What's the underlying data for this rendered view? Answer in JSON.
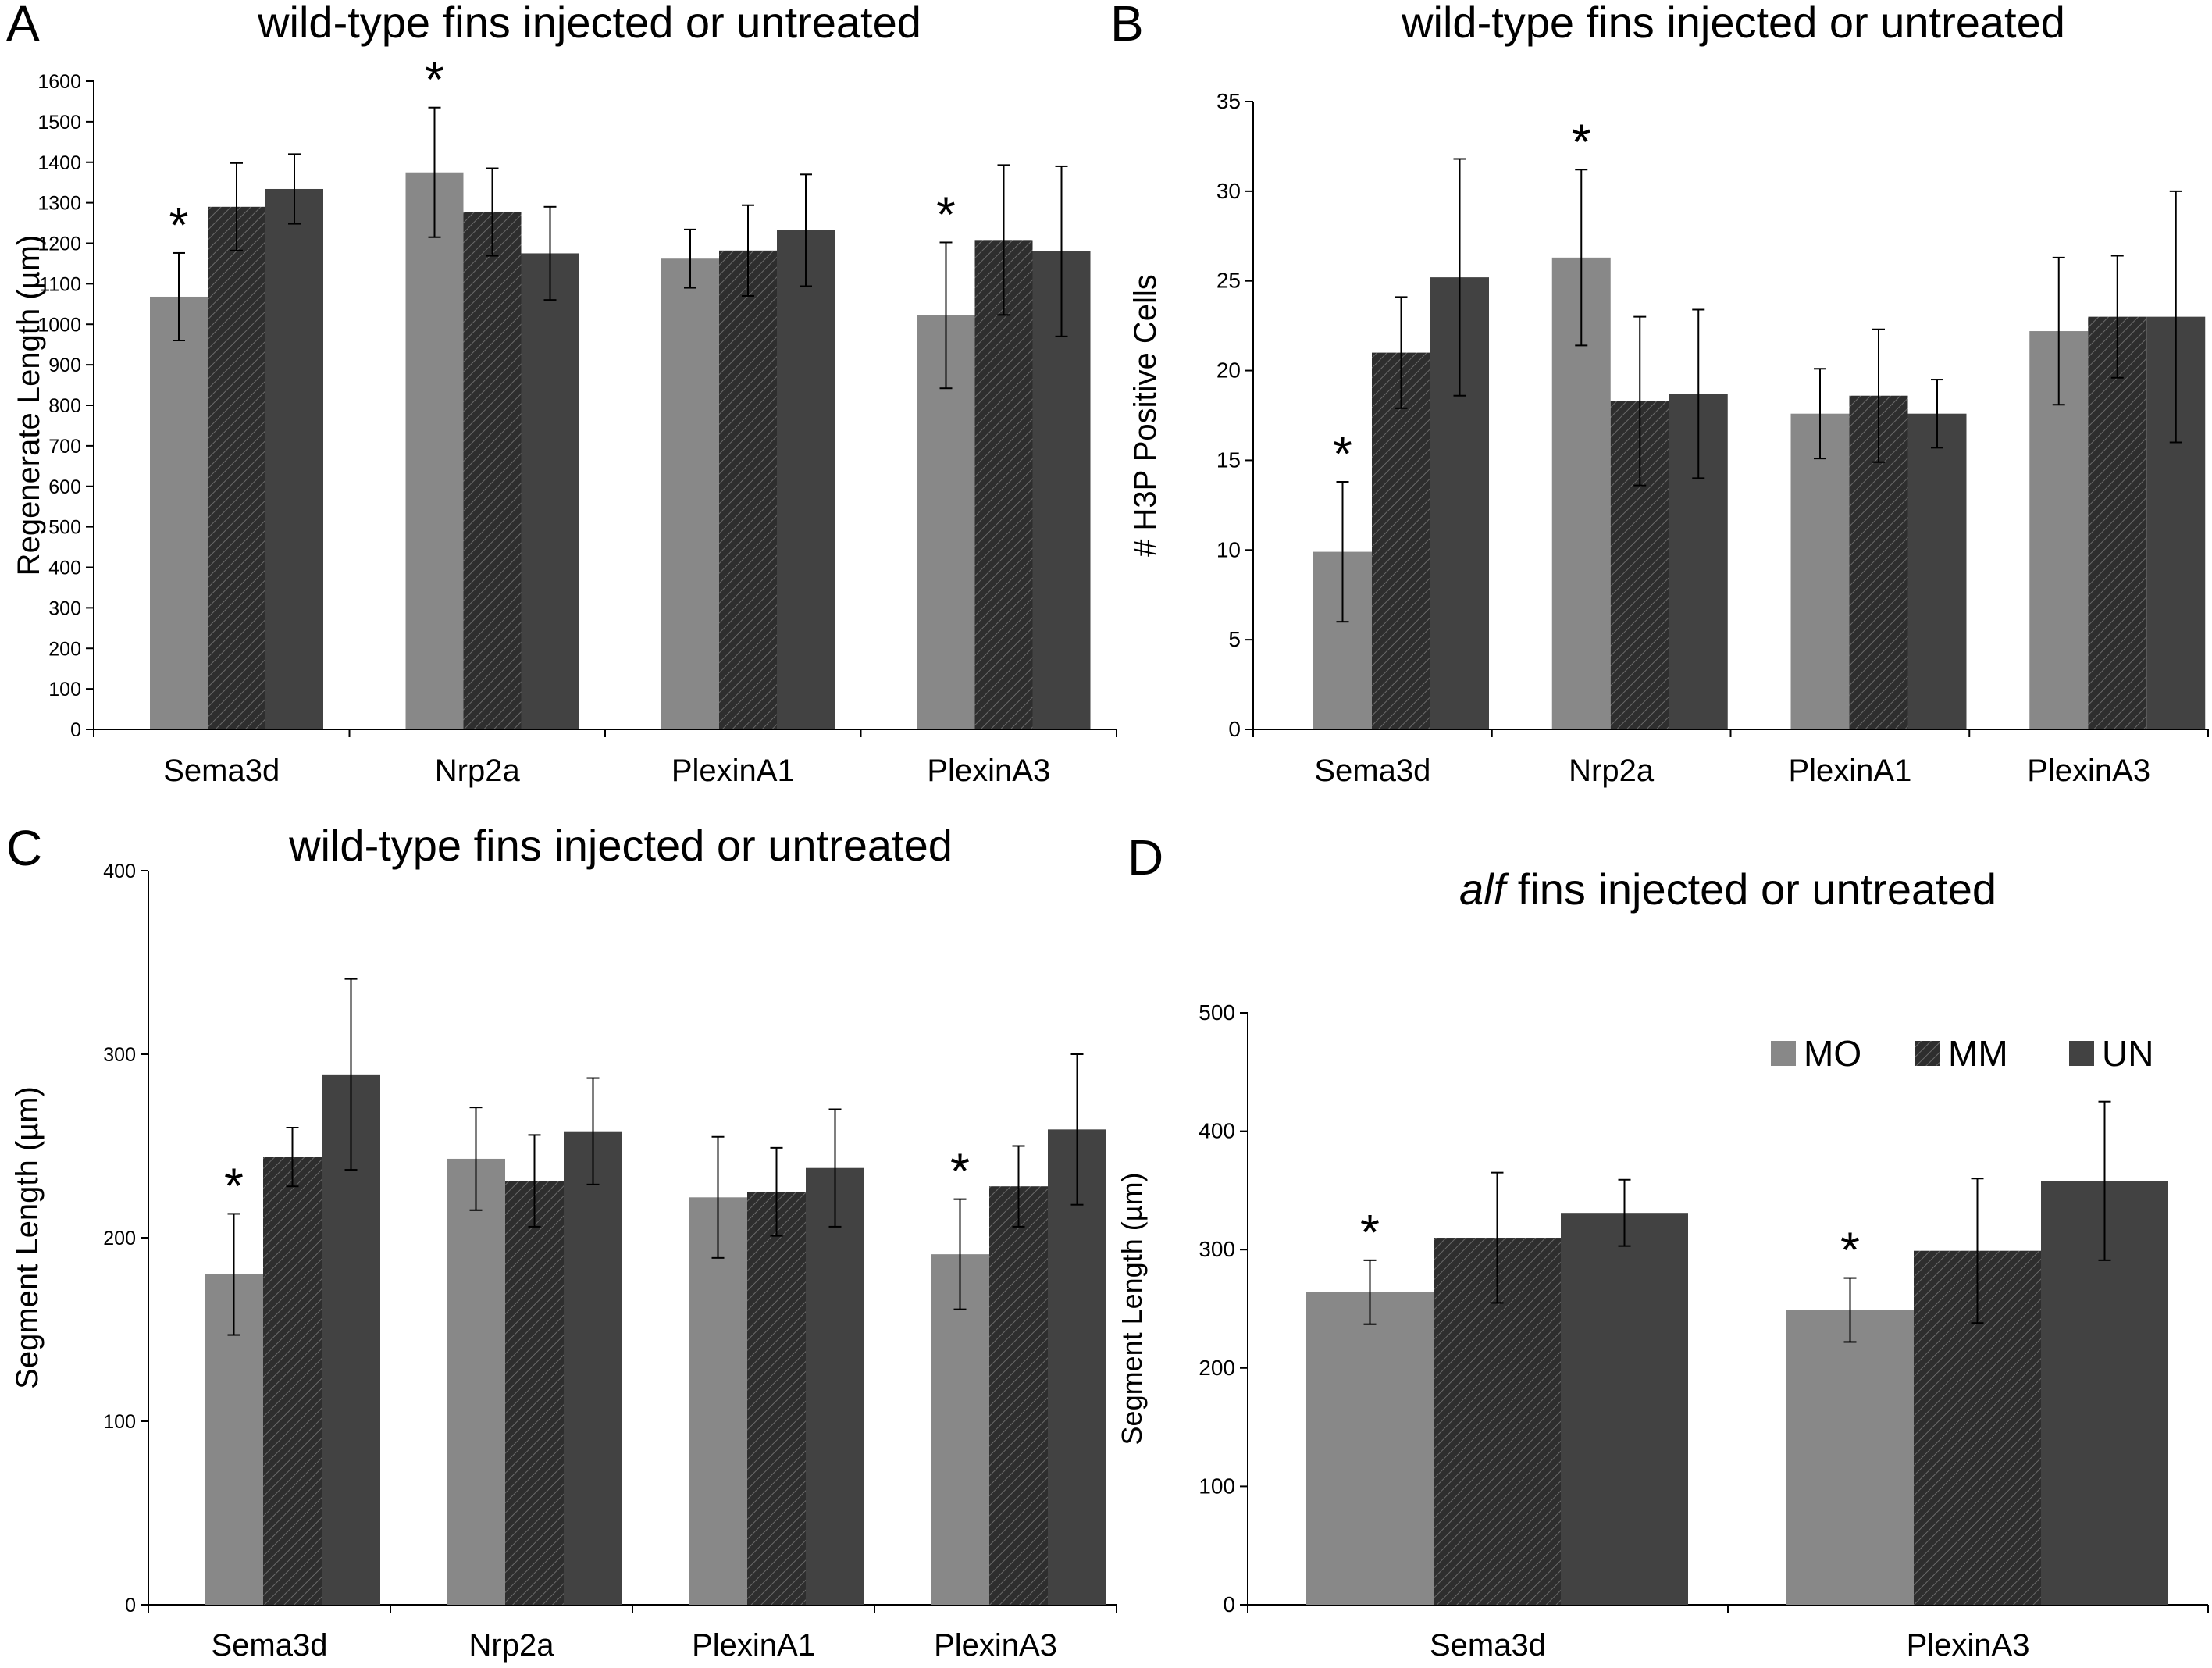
{
  "colors": {
    "MO": "#888888",
    "MM": "#333333",
    "UN": "#424242",
    "axis": "#000000"
  },
  "legend": [
    {
      "key": "MO",
      "label": "MO"
    },
    {
      "key": "MM",
      "label": "MM"
    },
    {
      "key": "UN",
      "label": "UN"
    }
  ],
  "chart_data": [
    {
      "panel": "A",
      "type": "bar",
      "title": "wild-type fins injected or untreated",
      "ylabel": "Regenerate Length (µm)",
      "ylim": [
        0,
        1600
      ],
      "ytick_step": 100,
      "categories": [
        "Sema3d",
        "Nrp2a",
        "PlexinA1",
        "PlexinA3"
      ],
      "series": [
        {
          "key": "MO",
          "values": [
            1068,
            1375,
            1162,
            1022
          ],
          "errors": [
            108,
            160,
            72,
            180
          ]
        },
        {
          "key": "MM",
          "values": [
            1290,
            1277,
            1182,
            1208
          ],
          "errors": [
            108,
            108,
            112,
            185
          ]
        },
        {
          "key": "UN",
          "values": [
            1334,
            1175,
            1232,
            1180
          ],
          "errors": [
            86,
            115,
            138,
            210
          ]
        }
      ],
      "significance": [
        "*",
        "*",
        "",
        "*"
      ]
    },
    {
      "panel": "B",
      "type": "bar",
      "title": "wild-type fins injected or untreated",
      "ylabel": "# H3P Positive Cells",
      "ylim": [
        0,
        35
      ],
      "ytick_step": 5,
      "categories": [
        "Sema3d",
        "Nrp2a",
        "PlexinA1",
        "PlexinA3"
      ],
      "series": [
        {
          "key": "MO",
          "values": [
            9.9,
            26.3,
            17.6,
            22.2
          ],
          "errors": [
            3.9,
            4.9,
            2.5,
            4.1
          ]
        },
        {
          "key": "MM",
          "values": [
            21.0,
            18.3,
            18.6,
            23.0
          ],
          "errors": [
            3.1,
            4.7,
            3.7,
            3.4
          ]
        },
        {
          "key": "UN",
          "values": [
            25.2,
            18.7,
            17.6,
            23.0
          ],
          "errors": [
            6.6,
            4.7,
            1.9,
            7.0
          ]
        }
      ],
      "significance": [
        "*",
        "*",
        "",
        ""
      ]
    },
    {
      "panel": "C",
      "type": "bar",
      "title": "wild-type fins injected or untreated",
      "ylabel": "Segment Length (µm)",
      "ylim": [
        0,
        400
      ],
      "ytick_step": 100,
      "categories": [
        "Sema3d",
        "Nrp2a",
        "PlexinA1",
        "PlexinA3"
      ],
      "series": [
        {
          "key": "MO",
          "values": [
            180,
            243,
            222,
            191
          ],
          "errors": [
            33,
            28,
            33,
            30
          ]
        },
        {
          "key": "MM",
          "values": [
            244,
            231,
            225,
            228
          ],
          "errors": [
            16,
            25,
            24,
            22
          ]
        },
        {
          "key": "UN",
          "values": [
            289,
            258,
            238,
            259
          ],
          "errors": [
            52,
            29,
            32,
            41
          ]
        }
      ],
      "significance": [
        "*",
        "",
        "",
        "*"
      ]
    },
    {
      "panel": "D",
      "type": "bar",
      "title_italic": "alf",
      "title": " fins injected or untreated",
      "ylabel": "Segment Length (µm)",
      "ylim": [
        0,
        500
      ],
      "ytick_step": 100,
      "categories": [
        "Sema3d",
        "PlexinA3"
      ],
      "series": [
        {
          "key": "MO",
          "values": [
            264,
            249
          ],
          "errors": [
            27,
            27
          ]
        },
        {
          "key": "MM",
          "values": [
            310,
            299
          ],
          "errors": [
            55,
            61
          ]
        },
        {
          "key": "UN",
          "values": [
            331,
            358
          ],
          "errors": [
            28,
            67
          ]
        }
      ],
      "significance": [
        "*",
        "*"
      ]
    }
  ]
}
